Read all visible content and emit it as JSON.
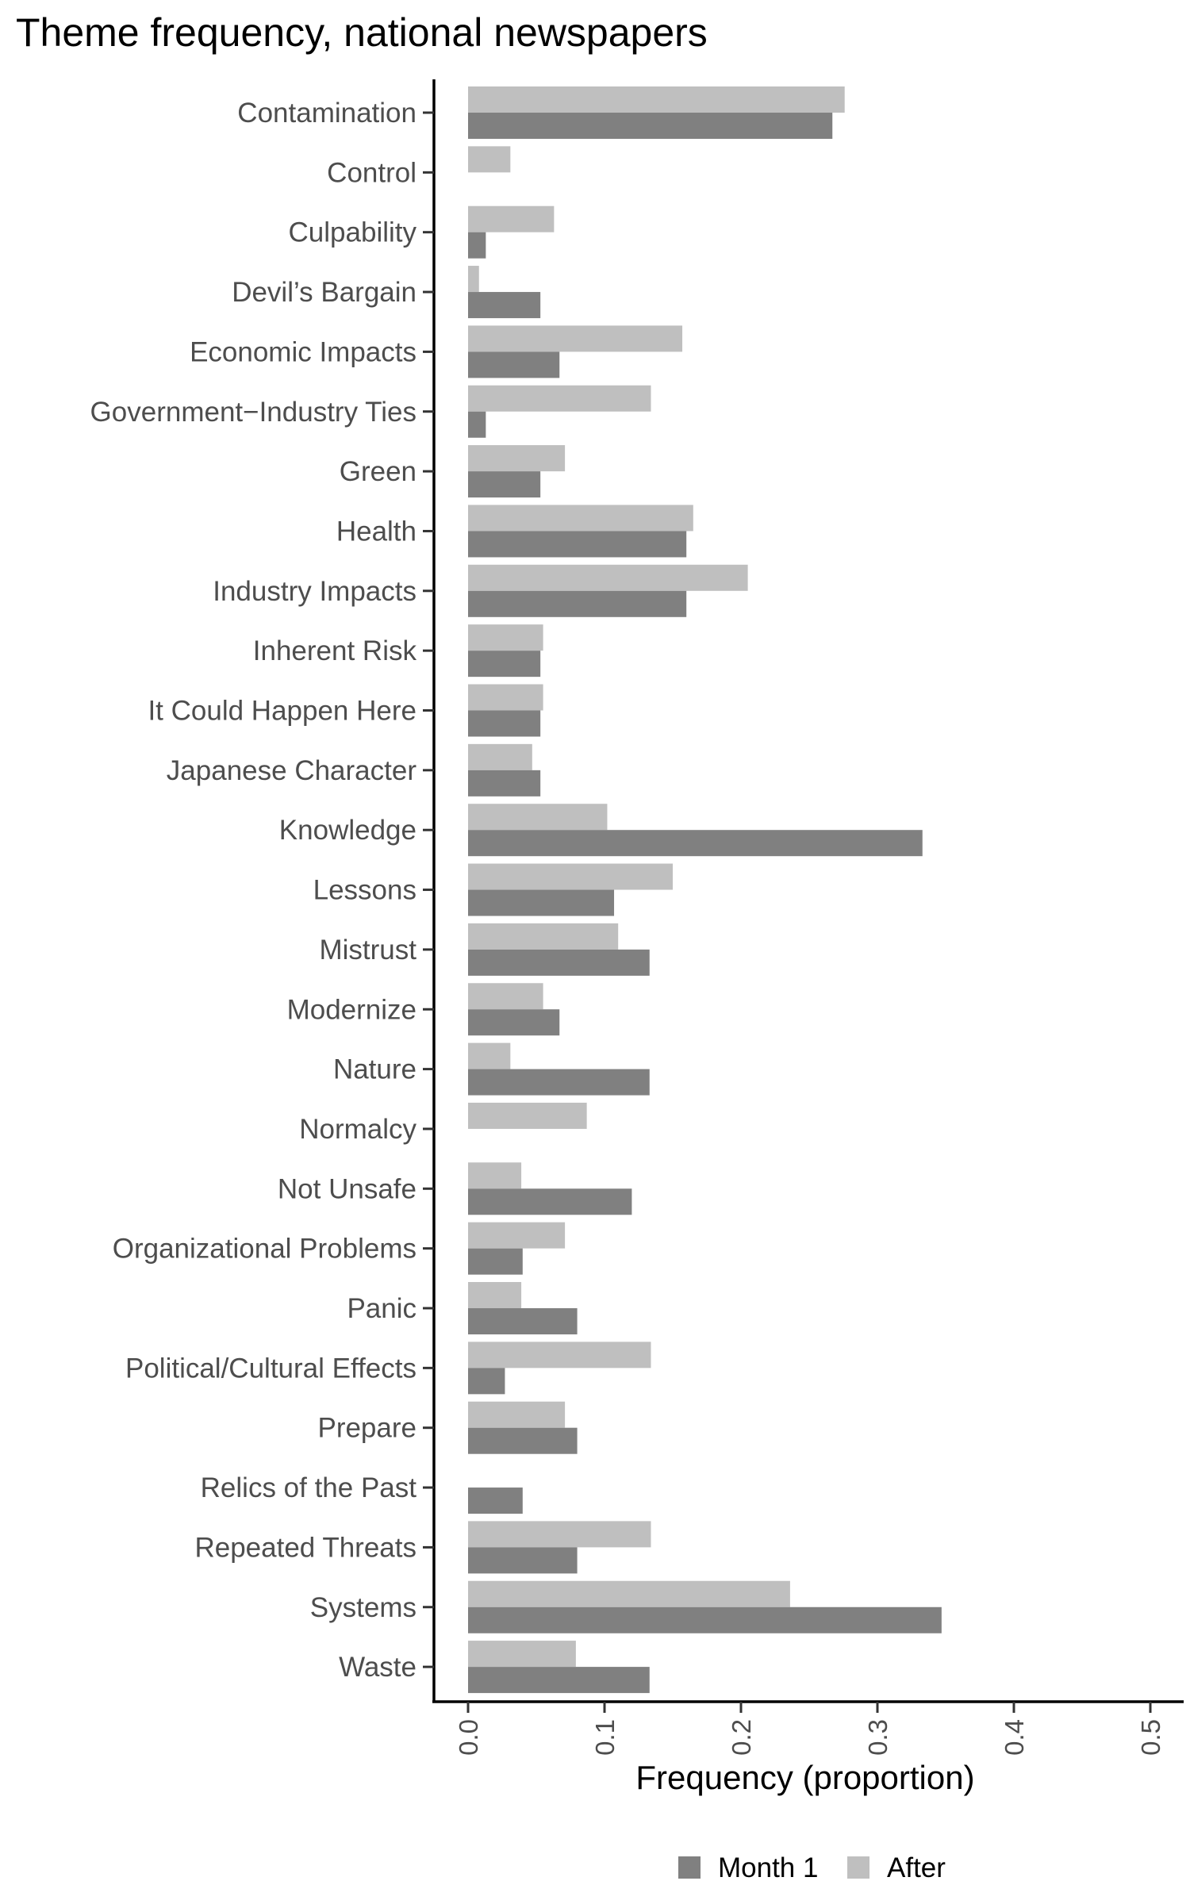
{
  "title": "Theme frequency, national newspapers",
  "chart_data": {
    "type": "bar",
    "orientation": "horizontal",
    "title": "Theme frequency, national newspapers",
    "xlabel": "Frequency (proportion)",
    "ylabel": "",
    "xlim": [
      0,
      0.5
    ],
    "x_ticks": [
      "0.0",
      "0.1",
      "0.2",
      "0.3",
      "0.4",
      "0.5"
    ],
    "grid": false,
    "legend_position": "bottom",
    "categories": [
      "Contamination",
      "Control",
      "Culpability",
      "Devil’s Bargain",
      "Economic Impacts",
      "Government−Industry Ties",
      "Green",
      "Health",
      "Industry Impacts",
      "Inherent Risk",
      "It Could Happen Here",
      "Japanese Character",
      "Knowledge",
      "Lessons",
      "Mistrust",
      "Modernize",
      "Nature",
      "Normalcy",
      "Not Unsafe",
      "Organizational Problems",
      "Panic",
      "Political/Cultural Effects",
      "Prepare",
      "Relics of the Past",
      "Repeated Threats",
      "Systems",
      "Waste"
    ],
    "series": [
      {
        "name": "Month 1",
        "color": "#808080",
        "values": [
          0.267,
          0,
          0.013,
          0.053,
          0.067,
          0.013,
          0.053,
          0.16,
          0.16,
          0.053,
          0.053,
          0.053,
          0.333,
          0.107,
          0.133,
          0.067,
          0.133,
          0,
          0.12,
          0.04,
          0.08,
          0.027,
          0.08,
          0.04,
          0.08,
          0.347,
          0.133
        ]
      },
      {
        "name": "After",
        "color": "#bfbfbf",
        "values": [
          0.276,
          0.031,
          0.063,
          0.008,
          0.157,
          0.134,
          0.071,
          0.165,
          0.205,
          0.055,
          0.055,
          0.047,
          0.102,
          0.15,
          0.11,
          0.055,
          0.031,
          0.087,
          0.039,
          0.071,
          0.039,
          0.134,
          0.071,
          0,
          0.134,
          0.236,
          0.079
        ]
      }
    ]
  }
}
